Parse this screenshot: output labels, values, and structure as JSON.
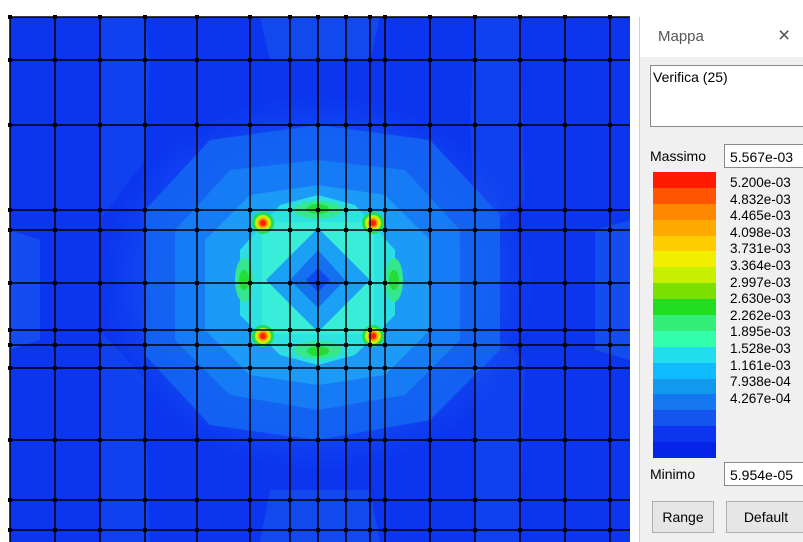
{
  "window": {
    "title": "Mappa",
    "close_icon": "close-icon",
    "close_glyph": "×"
  },
  "map": {
    "description": "Verifica (25)"
  },
  "legend": {
    "max_label": "Massimo",
    "max_value": "5.567e-03",
    "min_label": "Minimo",
    "min_value": "5.954e-05",
    "colors": [
      "#ff1a00",
      "#ff5500",
      "#ff8800",
      "#ffaa00",
      "#ffcc00",
      "#f2ee00",
      "#c8ee00",
      "#7be000",
      "#22dd22",
      "#33ee77",
      "#33ffaa",
      "#22ddee",
      "#11bbff",
      "#1199ee",
      "#1477f0",
      "#1455f0",
      "#0b35ee",
      "#0524e8"
    ],
    "levels": [
      "5.200e-03",
      "4.832e-03",
      "4.465e-03",
      "4.098e-03",
      "3.731e-03",
      "3.364e-03",
      "2.997e-03",
      "2.630e-03",
      "2.262e-03",
      "1.895e-03",
      "1.528e-03",
      "1.161e-03",
      "7.938e-04",
      "4.267e-04"
    ]
  },
  "buttons": {
    "range": "Range",
    "default": "Default"
  }
}
